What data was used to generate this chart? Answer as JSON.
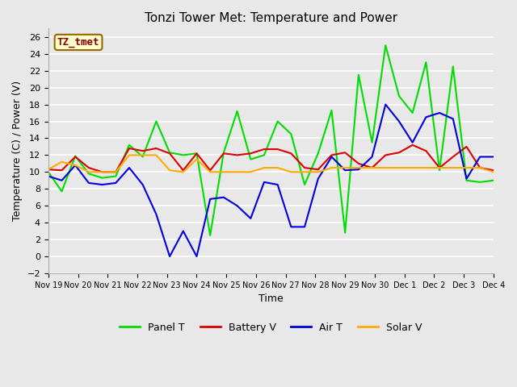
{
  "title": "Tonzi Tower Met: Temperature and Power",
  "xlabel": "Time",
  "ylabel": "Temperature (C) / Power (V)",
  "ylim": [
    -2,
    27
  ],
  "yticks": [
    -2,
    0,
    2,
    4,
    6,
    8,
    10,
    12,
    14,
    16,
    18,
    20,
    22,
    24,
    26
  ],
  "fig_bg": "#e8e8e8",
  "plot_bg": "#e8e8e8",
  "grid_color": "#ffffff",
  "annotation_text": "TZ_tmet",
  "annotation_bg": "#ffffcc",
  "annotation_border": "#996600",
  "annotation_text_color": "#880000",
  "x_labels": [
    "Nov 19",
    "Nov 20",
    "Nov 21",
    "Nov 22",
    "Nov 23",
    "Nov 24",
    "Nov 25",
    "Nov 26",
    "Nov 27",
    "Nov 28",
    "Nov 29",
    "Nov 30",
    "Dec 1",
    "Dec 2",
    "Dec 3",
    "Dec 4"
  ],
  "panel_t": {
    "label": "Panel T",
    "color": "#00dd00",
    "y": [
      10.0,
      7.7,
      11.9,
      9.8,
      9.3,
      9.5,
      13.2,
      11.8,
      16.0,
      12.3,
      12.0,
      12.2,
      2.5,
      12.3,
      17.2,
      11.5,
      12.0,
      16.0,
      14.5,
      8.5,
      12.2,
      17.3,
      2.8,
      21.5,
      13.5,
      25.0,
      19.0,
      17.0,
      23.0,
      10.2,
      22.5,
      9.0,
      8.8,
      9.0
    ]
  },
  "battery_v": {
    "label": "Battery V",
    "color": "#dd0000",
    "y": [
      10.3,
      10.2,
      11.8,
      10.5,
      10.0,
      10.0,
      12.8,
      12.5,
      12.8,
      12.2,
      10.2,
      12.2,
      10.2,
      12.2,
      12.0,
      12.2,
      12.7,
      12.7,
      12.2,
      10.5,
      10.3,
      12.0,
      12.3,
      11.0,
      10.5,
      12.0,
      12.3,
      13.2,
      12.5,
      10.5,
      11.8,
      13.0,
      10.5,
      10.2
    ]
  },
  "air_t": {
    "label": "Air T",
    "color": "#0000dd",
    "y": [
      9.5,
      9.0,
      10.8,
      8.7,
      8.5,
      8.7,
      10.5,
      8.5,
      5.0,
      0.0,
      3.0,
      0.0,
      6.8,
      7.0,
      6.0,
      4.5,
      8.8,
      8.5,
      3.5,
      3.5,
      9.2,
      11.8,
      10.2,
      10.3,
      11.8,
      18.0,
      16.0,
      13.5,
      16.5,
      17.0,
      16.3,
      9.2,
      11.8,
      11.8
    ]
  },
  "solar_v": {
    "label": "Solar V",
    "color": "#ffaa00",
    "y": [
      10.3,
      11.2,
      10.8,
      10.0,
      10.0,
      10.0,
      12.0,
      12.0,
      12.0,
      10.2,
      10.0,
      11.5,
      10.0,
      10.0,
      10.0,
      10.0,
      10.5,
      10.5,
      10.0,
      10.0,
      10.0,
      10.5,
      10.5,
      10.5,
      10.5,
      10.5,
      10.5,
      10.5,
      10.5,
      10.5,
      10.5,
      10.5,
      10.5,
      10.0
    ]
  }
}
